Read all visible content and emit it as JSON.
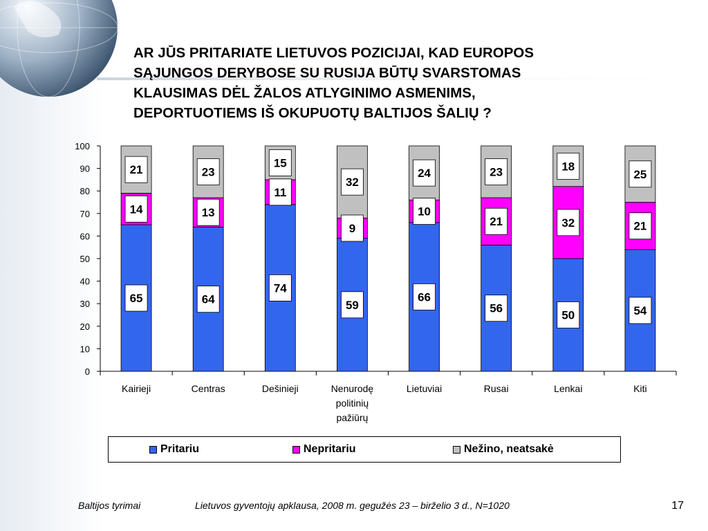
{
  "title": "AR JŪS PRITARIATE LIETUVOS POZICIJAI, KAD EUROPOS\nSĄJUNGOS DERYBOSE SU RUSIJA BŪTŲ SVARSTOMAS\nKLAUSIMAS DĖL ŽALOS ATLYGINIMO ASMENIMS,\nDEPORTUOTIEMS IŠ OKUPUOTŲ BALTIJOS ŠALIŲ ?",
  "footer": {
    "source": "Baltijos tyrimai",
    "survey": "Lietuvos gyventojų apklausa, 2008 m. gegužės 23 – birželio 3 d., N=1020",
    "page": "17"
  },
  "chart_data": {
    "type": "bar",
    "stacked": true,
    "categories": [
      "Kairieji",
      "Centras",
      "Dešinieji",
      "Nenurodę politinių pažiūrų",
      "Lietuviai",
      "Rusai",
      "Lenkai",
      "Kiti"
    ],
    "category_lines": [
      [
        "Kairieji"
      ],
      [
        "Centras"
      ],
      [
        "Dešinieji"
      ],
      [
        "Nenurodę",
        "politinių",
        "pažiūrų"
      ],
      [
        "Lietuviai"
      ],
      [
        "Rusai"
      ],
      [
        "Lenkai"
      ],
      [
        "Kiti"
      ]
    ],
    "series": [
      {
        "name": "Pritariu",
        "color": "#3366ee",
        "values": [
          65,
          64,
          74,
          59,
          66,
          56,
          50,
          54
        ]
      },
      {
        "name": "Nepritariu",
        "color": "#ff00ff",
        "values": [
          14,
          13,
          11,
          9,
          10,
          21,
          32,
          21
        ]
      },
      {
        "name": "Nežino, neatsakė",
        "color": "#c0c0c0",
        "values": [
          21,
          23,
          15,
          32,
          24,
          23,
          18,
          25
        ]
      }
    ],
    "ylim": [
      0,
      100
    ],
    "yticks": [
      0,
      10,
      20,
      30,
      40,
      50,
      60,
      70,
      80,
      90,
      100
    ],
    "grid": false,
    "legend_position": "bottom",
    "xlabel": "",
    "ylabel": ""
  }
}
